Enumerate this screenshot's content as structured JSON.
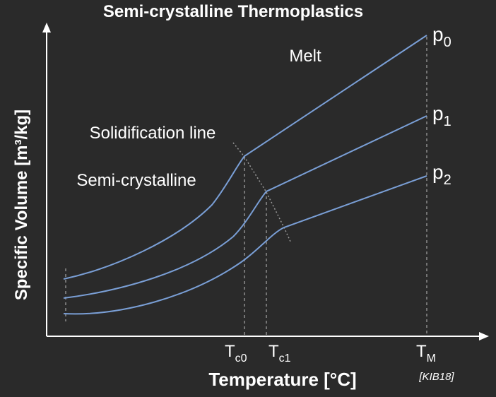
{
  "title": "Semi-crystalline Thermoplastics",
  "ylabel": "Specific Volume [m³/kg]",
  "xlabel": "Temperature [°C]",
  "citation": "[KIB18]",
  "region_labels": {
    "melt": "Melt",
    "solidification": "Solidification line",
    "semi_crystalline": "Semi-crystalline"
  },
  "pressure_labels": [
    {
      "base": "p",
      "sub": "0"
    },
    {
      "base": "p",
      "sub": "1"
    },
    {
      "base": "p",
      "sub": "2"
    }
  ],
  "x_ticks": [
    {
      "base": "T",
      "sub": "c0"
    },
    {
      "base": "T",
      "sub": "c1"
    },
    {
      "base": "T",
      "sub": "M"
    }
  ],
  "colors": {
    "background": "#2a2a2a",
    "curve": "#7a9fd6",
    "axis": "#ffffff",
    "guide": "#bdbdbd",
    "solidification": "#9a9a9a",
    "text": "#ffffff"
  }
}
